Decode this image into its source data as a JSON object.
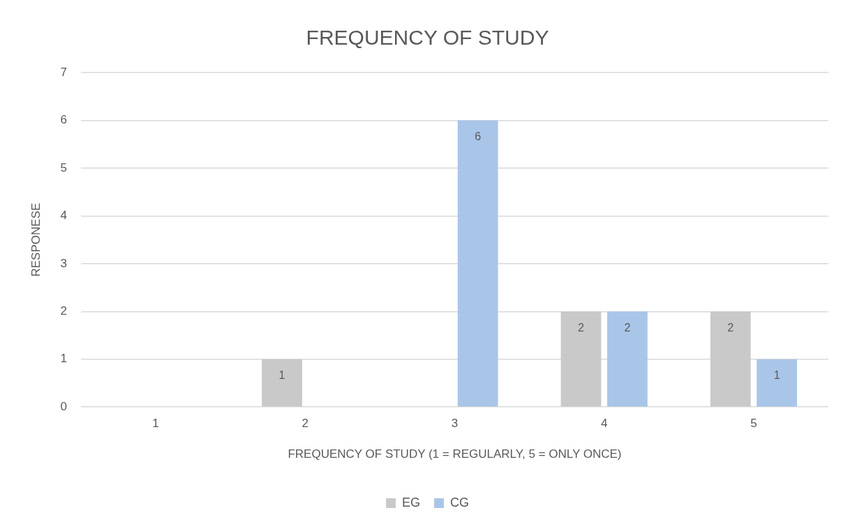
{
  "chart_data": {
    "type": "bar",
    "title": "FREQUENCY OF STUDY",
    "xlabel": "FREQUENCY OF STUDY (1 = REGULARLY, 5 = ONLY ONCE)",
    "ylabel": "RESPONESE",
    "categories": [
      "1",
      "2",
      "3",
      "4",
      "5"
    ],
    "series": [
      {
        "name": "EG",
        "color": "#c9c9c9",
        "values": [
          0,
          1,
          0,
          2,
          2
        ],
        "value_labels": [
          null,
          "1",
          null,
          "2",
          "2"
        ]
      },
      {
        "name": "CG",
        "color": "#a9c6e8",
        "values": [
          0,
          0,
          6,
          2,
          1
        ],
        "value_labels": [
          null,
          null,
          "6",
          "2",
          "1"
        ]
      }
    ],
    "ylim": [
      0,
      7
    ],
    "yticks": [
      0,
      1,
      2,
      3,
      4,
      5,
      6,
      7
    ],
    "grid": "y",
    "legend": "bottom"
  }
}
